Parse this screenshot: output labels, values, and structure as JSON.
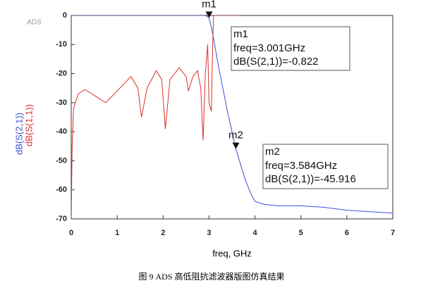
{
  "logo": "ADS",
  "caption": "图 9 ADS 高低阻抗滤波器版图仿真结果",
  "chart_data": {
    "type": "line",
    "x_label": "freq, GHz",
    "xlim": [
      0,
      7
    ],
    "xticks": [
      0,
      1,
      2,
      3,
      4,
      5,
      6,
      7
    ],
    "ylim": [
      -70,
      0
    ],
    "yticks": [
      0,
      -10,
      -20,
      -30,
      -40,
      -50,
      -60,
      -70
    ],
    "series": [
      {
        "name": "dB(S(2,1))",
        "color": "#3a4fd6",
        "x": [
          0,
          2.9,
          2.95,
          3.0,
          3.05,
          3.1,
          3.2,
          3.3,
          3.4,
          3.5,
          3.584,
          3.7,
          3.8,
          3.9,
          4.0,
          4.2,
          4.5,
          5.0,
          5.5,
          6.0,
          6.5,
          7.0
        ],
        "values": [
          0,
          0,
          -0.2,
          -0.822,
          -4,
          -8,
          -17,
          -25,
          -33,
          -40,
          -45.916,
          -52,
          -57,
          -61,
          -64,
          -65,
          -65.5,
          -65.5,
          -66,
          -67,
          -67.5,
          -68
        ]
      },
      {
        "name": "dB(S(1,1))",
        "color": "#d9302c",
        "x": [
          0,
          0.02,
          0.05,
          0.15,
          0.3,
          0.55,
          0.75,
          1.0,
          1.3,
          1.45,
          1.53,
          1.65,
          1.85,
          1.97,
          2.05,
          2.15,
          2.35,
          2.5,
          2.55,
          2.65,
          2.75,
          2.82,
          2.87,
          2.92,
          2.97,
          3.0,
          3.05,
          3.08,
          3.1,
          3.65
        ],
        "values": [
          -70,
          -45,
          -32,
          -27,
          -25.5,
          -28,
          -30,
          -26,
          -21,
          -25,
          -35,
          -25,
          -19,
          -22,
          -39,
          -22,
          -18,
          -21,
          -26,
          -21,
          -19,
          -25,
          -43,
          -20,
          -10,
          -30,
          -33,
          -10,
          0,
          0
        ]
      }
    ],
    "markers": [
      {
        "label": "m1",
        "freq": 3.001,
        "value": -0.822,
        "lines": [
          "freq=3.001GHz",
          "dB(S(2,1))=-0.822"
        ]
      },
      {
        "label": "m2",
        "freq": 3.584,
        "value": -45.916,
        "lines": [
          "freq=3.584GHz",
          "dB(S(2,1))=-45.916"
        ]
      }
    ]
  }
}
